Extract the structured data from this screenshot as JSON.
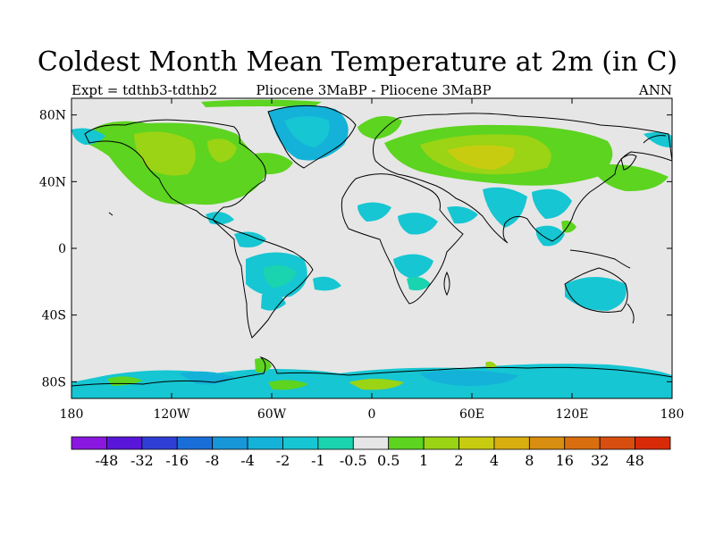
{
  "title": "Coldest Month Mean Temperature at 2m (in C)",
  "left_label": "Expt = tdthb3-tdthb2",
  "center_label": "Pliocene   3MaBP - Pliocene   3MaBP",
  "right_label": "ANN",
  "lat_ticks": [
    {
      "value": 80,
      "label": "80N"
    },
    {
      "value": 40,
      "label": "40N"
    },
    {
      "value": 0,
      "label": "0"
    },
    {
      "value": -40,
      "label": "40S"
    },
    {
      "value": -80,
      "label": "80S"
    }
  ],
  "lon_ticks": [
    {
      "value": -180,
      "label": "180"
    },
    {
      "value": -120,
      "label": "120W"
    },
    {
      "value": -60,
      "label": "60W"
    },
    {
      "value": 0,
      "label": "0"
    },
    {
      "value": 60,
      "label": "60E"
    },
    {
      "value": 120,
      "label": "120E"
    },
    {
      "value": 180,
      "label": "180"
    }
  ],
  "colorbar": {
    "labels": [
      "-48",
      "-32",
      "-16",
      "-8",
      "-4",
      "-2",
      "-1",
      "-0.5",
      "0.5",
      "1",
      "2",
      "4",
      "8",
      "16",
      "32",
      "48"
    ],
    "colors": [
      "#8a17e0",
      "#5a16d8",
      "#2f3fd6",
      "#1a6ed8",
      "#1796d8",
      "#14b2d8",
      "#16c6d2",
      "#1ad4b0",
      "#e6e6e6",
      "#5cd420",
      "#9ad414",
      "#c8cc10",
      "#d8ae10",
      "#d88e10",
      "#d86e10",
      "#d84e10",
      "#d82a08"
    ]
  },
  "colors": {
    "background": "#e6e6e6",
    "coastline": "#000000",
    "warm_1": "#5cd420",
    "warm_2": "#9ad414",
    "warm_3": "#c8cc10",
    "cool_1": "#1ad4b0",
    "cool_2": "#16c6d2",
    "cool_3": "#14b2d8"
  }
}
